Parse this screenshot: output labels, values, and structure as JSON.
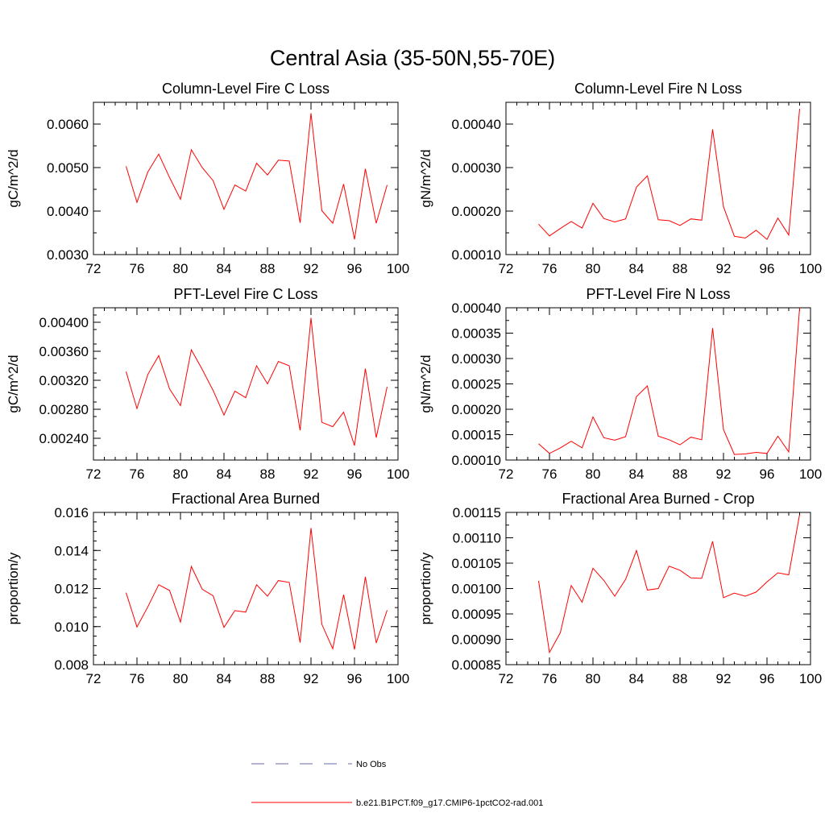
{
  "figure_title": "Central Asia (35-50N,55-70E)",
  "chart_data": [
    {
      "type": "line",
      "title": "Column-Level Fire C Loss",
      "ylabel": "gC/m^2/d",
      "xlabel": "",
      "xlim": [
        72,
        100
      ],
      "ylim": [
        0.003,
        0.0065
      ],
      "xticks": [
        "72",
        "76",
        "80",
        "84",
        "88",
        "92",
        "96",
        "100"
      ],
      "yticks": [
        {
          "v": 0.003,
          "label": "0.0030"
        },
        {
          "v": 0.004,
          "label": "0.0040"
        },
        {
          "v": 0.005,
          "label": "0.0050"
        },
        {
          "v": 0.006,
          "label": "0.0060"
        }
      ],
      "yminor": 0.0005,
      "x": [
        75,
        76,
        77,
        78,
        79,
        80,
        81,
        82,
        83,
        84,
        85,
        86,
        87,
        88,
        89,
        90,
        91,
        92,
        93,
        94,
        95,
        96,
        97,
        98,
        99
      ],
      "series": [
        {
          "values": [
            0.00503,
            0.0042,
            0.0049,
            0.00531,
            0.00477,
            0.00427,
            0.00541,
            0.005,
            0.0047,
            0.00404,
            0.0046,
            0.00446,
            0.0051,
            0.00483,
            0.00517,
            0.00515,
            0.00373,
            0.00625,
            0.00401,
            0.00372,
            0.00462,
            0.00335,
            0.00497,
            0.00372,
            0.0046
          ]
        }
      ]
    },
    {
      "type": "line",
      "title": "Column-Level Fire N Loss",
      "ylabel": "gN/m^2/d",
      "xlabel": "",
      "xlim": [
        72,
        100
      ],
      "ylim": [
        0.0001,
        0.00045
      ],
      "xticks": [
        "72",
        "76",
        "80",
        "84",
        "88",
        "92",
        "96",
        "100"
      ],
      "yticks": [
        {
          "v": 0.0001,
          "label": "0.00010"
        },
        {
          "v": 0.0002,
          "label": "0.00020"
        },
        {
          "v": 0.0003,
          "label": "0.00030"
        },
        {
          "v": 0.0004,
          "label": "0.00040"
        }
      ],
      "yminor": 5e-05,
      "x": [
        75,
        76,
        77,
        78,
        79,
        80,
        81,
        82,
        83,
        84,
        85,
        86,
        87,
        88,
        89,
        90,
        91,
        92,
        93,
        94,
        95,
        96,
        97,
        98,
        99
      ],
      "series": [
        {
          "values": [
            0.00017,
            0.000143,
            0.00016,
            0.000176,
            0.000161,
            0.000218,
            0.000183,
            0.000175,
            0.000182,
            0.000255,
            0.000281,
            0.00018,
            0.000178,
            0.000167,
            0.000182,
            0.000179,
            0.000388,
            0.00021,
            0.000142,
            0.000138,
            0.000156,
            0.000135,
            0.000184,
            0.000145,
            0.000435
          ]
        }
      ]
    },
    {
      "type": "line",
      "title": "PFT-Level Fire C Loss",
      "ylabel": "gC/m^2/d",
      "xlabel": "",
      "xlim": [
        72,
        100
      ],
      "ylim": [
        0.0021,
        0.0042
      ],
      "xticks": [
        "72",
        "76",
        "80",
        "84",
        "88",
        "92",
        "96",
        "100"
      ],
      "yticks": [
        {
          "v": 0.0024,
          "label": "0.00240"
        },
        {
          "v": 0.0028,
          "label": "0.00280"
        },
        {
          "v": 0.0032,
          "label": "0.00320"
        },
        {
          "v": 0.0036,
          "label": "0.00360"
        },
        {
          "v": 0.004,
          "label": "0.00400"
        }
      ],
      "yminor": 0.0002,
      "x": [
        75,
        76,
        77,
        78,
        79,
        80,
        81,
        82,
        83,
        84,
        85,
        86,
        87,
        88,
        89,
        90,
        91,
        92,
        93,
        94,
        95,
        96,
        97,
        98,
        99
      ],
      "series": [
        {
          "values": [
            0.00332,
            0.00281,
            0.00328,
            0.00354,
            0.00308,
            0.00285,
            0.00362,
            0.00335,
            0.00306,
            0.00272,
            0.00305,
            0.00296,
            0.0034,
            0.00315,
            0.00346,
            0.0034,
            0.00251,
            0.00406,
            0.00262,
            0.00256,
            0.00276,
            0.0023,
            0.00336,
            0.00241,
            0.00311
          ]
        }
      ]
    },
    {
      "type": "line",
      "title": "PFT-Level Fire N Loss",
      "ylabel": "gN/m^2/d",
      "xlabel": "",
      "xlim": [
        72,
        100
      ],
      "ylim": [
        0.0001,
        0.0004
      ],
      "xticks": [
        "72",
        "76",
        "80",
        "84",
        "88",
        "92",
        "96",
        "100"
      ],
      "yticks": [
        {
          "v": 0.0001,
          "label": "0.00010"
        },
        {
          "v": 0.00015,
          "label": "0.00015"
        },
        {
          "v": 0.0002,
          "label": "0.00020"
        },
        {
          "v": 0.00025,
          "label": "0.00025"
        },
        {
          "v": 0.0003,
          "label": "0.00030"
        },
        {
          "v": 0.00035,
          "label": "0.00035"
        },
        {
          "v": 0.0004,
          "label": "0.00040"
        }
      ],
      "yminor": 2.5e-05,
      "x": [
        75,
        76,
        77,
        78,
        79,
        80,
        81,
        82,
        83,
        84,
        85,
        86,
        87,
        88,
        89,
        90,
        91,
        92,
        93,
        94,
        95,
        96,
        97,
        98,
        99
      ],
      "series": [
        {
          "values": [
            0.000132,
            0.000113,
            0.000124,
            0.000137,
            0.000124,
            0.000185,
            0.000144,
            0.000139,
            0.000146,
            0.000225,
            0.000246,
            0.000147,
            0.00014,
            0.00013,
            0.000145,
            0.00014,
            0.00036,
            0.00016,
            0.000111,
            0.000112,
            0.000115,
            0.000113,
            0.000147,
            0.000116,
            0.0004
          ]
        }
      ]
    },
    {
      "type": "line",
      "title": "Fractional Area Burned",
      "ylabel": "proportion/y",
      "xlabel": "",
      "xlim": [
        72,
        100
      ],
      "ylim": [
        0.008,
        0.016
      ],
      "xticks": [
        "72",
        "76",
        "80",
        "84",
        "88",
        "92",
        "96",
        "100"
      ],
      "yticks": [
        {
          "v": 0.008,
          "label": "0.008"
        },
        {
          "v": 0.01,
          "label": "0.010"
        },
        {
          "v": 0.012,
          "label": "0.012"
        },
        {
          "v": 0.014,
          "label": "0.014"
        },
        {
          "v": 0.016,
          "label": "0.016"
        }
      ],
      "yminor": 0.0005,
      "x": [
        75,
        76,
        77,
        78,
        79,
        80,
        81,
        82,
        83,
        84,
        85,
        86,
        87,
        88,
        89,
        90,
        91,
        92,
        93,
        94,
        95,
        96,
        97,
        98,
        99
      ],
      "series": [
        {
          "values": [
            0.01178,
            0.00998,
            0.01104,
            0.0122,
            0.0119,
            0.01024,
            0.01316,
            0.01196,
            0.01162,
            0.00996,
            0.01084,
            0.01076,
            0.0122,
            0.0116,
            0.01242,
            0.01232,
            0.00916,
            0.01518,
            0.01012,
            0.00884,
            0.01168,
            0.0088,
            0.01262,
            0.00914,
            0.01086
          ]
        }
      ]
    },
    {
      "type": "line",
      "title": "Fractional Area Burned - Crop",
      "ylabel": "proportion/y",
      "xlabel": "",
      "xlim": [
        72,
        100
      ],
      "ylim": [
        0.00085,
        0.00115
      ],
      "xticks": [
        "72",
        "76",
        "80",
        "84",
        "88",
        "92",
        "96",
        "100"
      ],
      "yticks": [
        {
          "v": 0.00085,
          "label": "0.00085"
        },
        {
          "v": 0.0009,
          "label": "0.00090"
        },
        {
          "v": 0.00095,
          "label": "0.00095"
        },
        {
          "v": 0.001,
          "label": "0.00100"
        },
        {
          "v": 0.00105,
          "label": "0.00105"
        },
        {
          "v": 0.0011,
          "label": "0.00110"
        },
        {
          "v": 0.00115,
          "label": "0.00115"
        }
      ],
      "yminor": 2.5e-05,
      "x": [
        75,
        76,
        77,
        78,
        79,
        80,
        81,
        82,
        83,
        84,
        85,
        86,
        87,
        88,
        89,
        90,
        91,
        92,
        93,
        94,
        95,
        96,
        97,
        98,
        99
      ],
      "series": [
        {
          "values": [
            0.001015,
            0.000874,
            0.000913,
            0.001006,
            0.000973,
            0.00104,
            0.001016,
            0.000985,
            0.001018,
            0.001075,
            0.000997,
            0.001,
            0.001044,
            0.001036,
            0.001021,
            0.00102,
            0.001093,
            0.000982,
            0.000991,
            0.000985,
            0.000993,
            0.001013,
            0.001031,
            0.001027,
            0.001146
          ]
        }
      ]
    }
  ],
  "legend": {
    "entries": [
      {
        "label": "No Obs",
        "color": "#6a6aa8",
        "style": "dashed"
      },
      {
        "label": "b.e21.B1PCT.f09_g17.CMIP6-1pctCO2-rad.001",
        "color": "#ff0000",
        "style": "solid"
      }
    ]
  }
}
